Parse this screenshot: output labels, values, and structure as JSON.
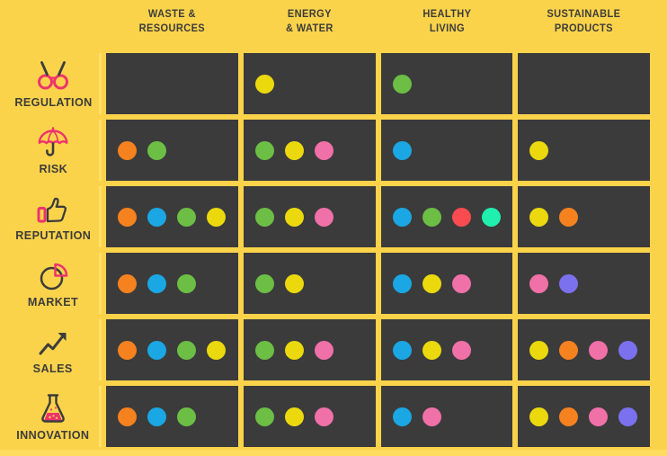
{
  "palette": {
    "background": "#FBD34A",
    "cell_background": "#3B3B3B",
    "accent_line": "#FFE06A",
    "bottom_strip": "#FFDC60",
    "text": "#3C3C3C",
    "icon_pink": "#EE336E",
    "icon_dark": "#3C3C3C",
    "dot_colors": {
      "orange": "#F5821F",
      "blue": "#1AA7E3",
      "green": "#6CBE45",
      "yellow": "#EBD90E",
      "pink": "#F070A8",
      "red": "#FA4B51",
      "teal": "#20F0AD",
      "purple": "#7B70ED"
    }
  },
  "headers_display": [
    "WASTE &\nRESOURCES",
    "ENERGY\n& WATER",
    "HEALTHY\nLIVING",
    "SUSTAINABLE\nPRODUCTS"
  ],
  "chart_data": {
    "type": "table",
    "description": "Sustainability impact matrix: colored dots mark which initiative themes apply to each business-value row per category column",
    "columns": [
      "WASTE & RESOURCES",
      "ENERGY & WATER",
      "HEALTHY LIVING",
      "SUSTAINABLE PRODUCTS"
    ],
    "rows": [
      {
        "label": "REGULATION",
        "icon": "glasses-icon",
        "cells": [
          [],
          [
            "yellow"
          ],
          [
            "green"
          ],
          []
        ]
      },
      {
        "label": "RISK",
        "icon": "umbrella-icon",
        "cells": [
          [
            "orange",
            "green"
          ],
          [
            "green",
            "yellow",
            "pink"
          ],
          [
            "blue"
          ],
          [
            "yellow"
          ]
        ]
      },
      {
        "label": "REPUTATION",
        "icon": "thumbs-up-icon",
        "cells": [
          [
            "orange",
            "blue",
            "green",
            "yellow"
          ],
          [
            "green",
            "yellow",
            "pink"
          ],
          [
            "blue",
            "green",
            "red",
            "teal"
          ],
          [
            "yellow",
            "orange"
          ]
        ]
      },
      {
        "label": "MARKET",
        "icon": "pie-chart-icon",
        "cells": [
          [
            "orange",
            "blue",
            "green"
          ],
          [
            "green",
            "yellow"
          ],
          [
            "blue",
            "yellow",
            "pink"
          ],
          [
            "pink",
            "purple"
          ]
        ]
      },
      {
        "label": "SALES",
        "icon": "trend-arrow-icon",
        "cells": [
          [
            "orange",
            "blue",
            "green",
            "yellow"
          ],
          [
            "green",
            "yellow",
            "pink"
          ],
          [
            "blue",
            "yellow",
            "pink"
          ],
          [
            "yellow",
            "orange",
            "pink",
            "purple"
          ]
        ]
      },
      {
        "label": "INNOVATION",
        "icon": "flask-icon",
        "cells": [
          [
            "orange",
            "blue",
            "green"
          ],
          [
            "green",
            "yellow",
            "pink"
          ],
          [
            "blue",
            "pink"
          ],
          [
            "yellow",
            "orange",
            "pink",
            "purple"
          ]
        ]
      }
    ],
    "legend_position": "none",
    "grid": "dark cells on yellow background"
  }
}
